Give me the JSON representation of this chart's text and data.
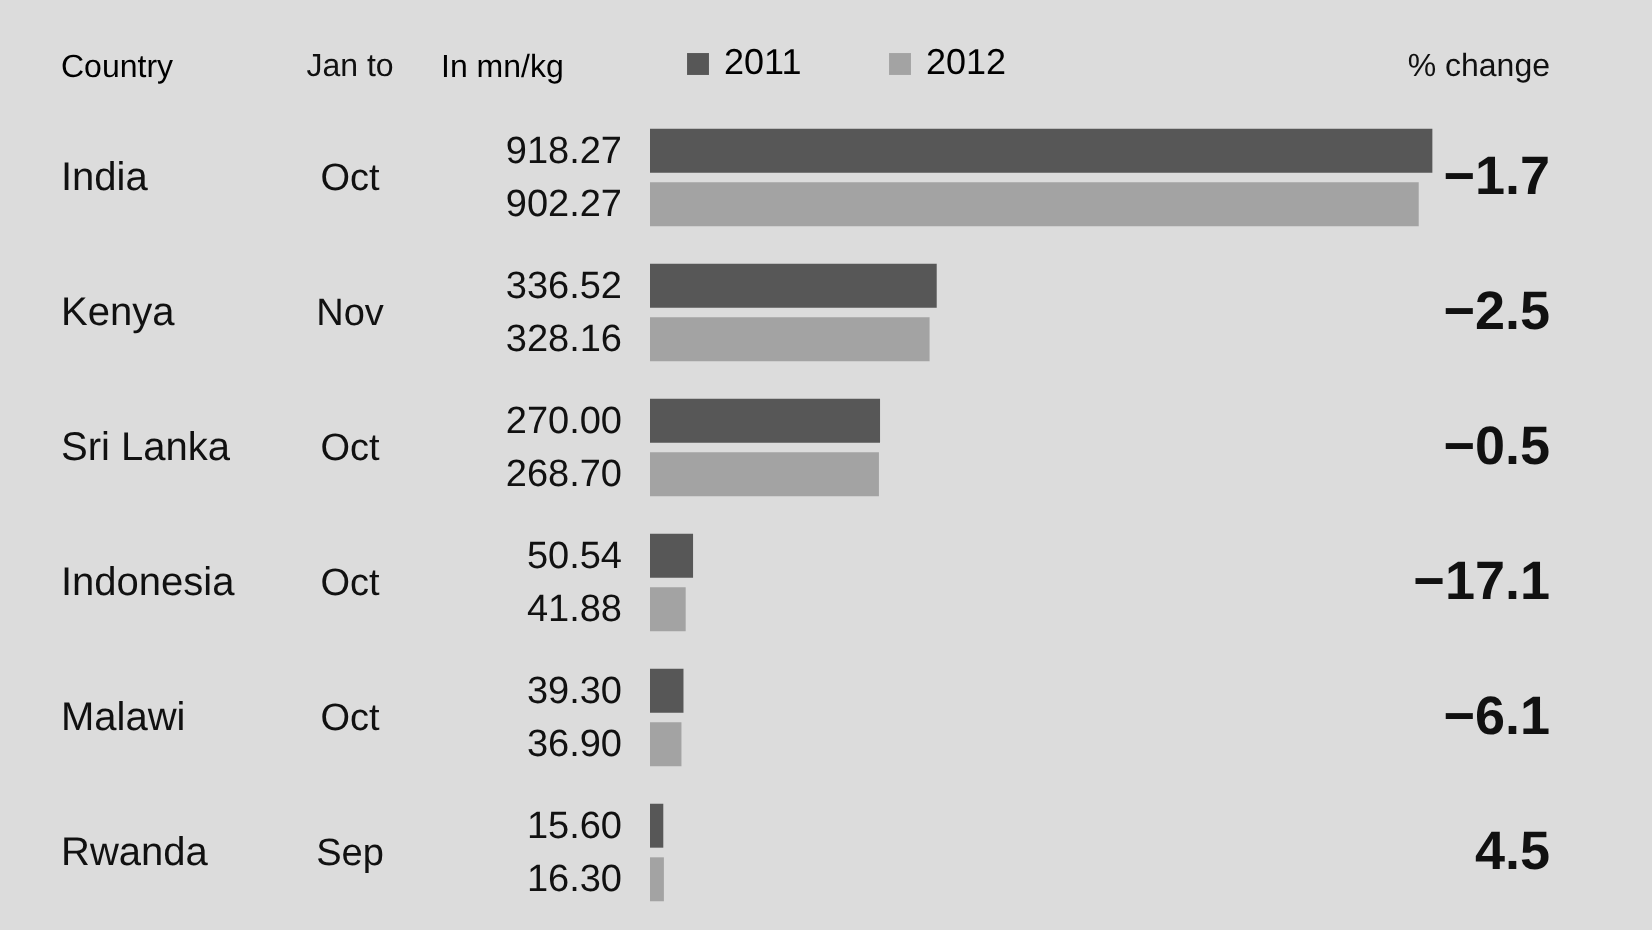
{
  "chart_data": {
    "type": "bar",
    "orientation": "horizontal",
    "ylabel": "Country",
    "xlabel": "In mn/kg",
    "categories": [
      "India",
      "Kenya",
      "Sri Lanka",
      "Indonesia",
      "Malawi",
      "Rwanda"
    ],
    "series": [
      {
        "name": "2011",
        "color": "#575757",
        "values": [
          918.27,
          336.52,
          270.0,
          50.54,
          39.3,
          15.6
        ],
        "value_labels": [
          "918.27",
          "336.52",
          "270.00",
          "50.54",
          "39.30",
          "15.60"
        ]
      },
      {
        "name": "2012",
        "color": "#a3a3a3",
        "values": [
          902.27,
          328.16,
          268.7,
          41.88,
          36.9,
          16.3
        ],
        "value_labels": [
          "902.27",
          "328.16",
          "268.70",
          "41.88",
          "36.90",
          "16.30"
        ]
      }
    ],
    "data_labels": true,
    "legend": "top",
    "annotations": [
      "Jan to",
      "Oct",
      "Nov",
      "Oct",
      "Oct",
      "Oct",
      "Sep",
      "% change",
      "−1.7",
      "−2.5",
      "−0.5",
      "−17.1",
      "−6.1",
      "4.5"
    ]
  }
}
